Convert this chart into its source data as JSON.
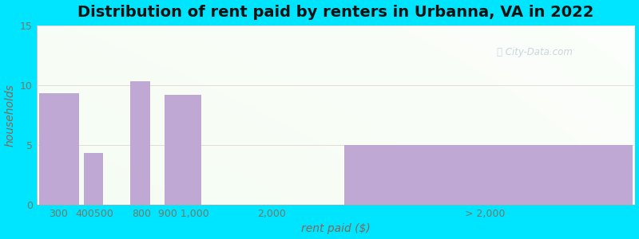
{
  "title": "Distribution of rent paid by renters in Urbanna, VA in 2022",
  "xlabel": "rent paid ($)",
  "ylabel": "households",
  "bar_color": "#c0a8d4",
  "background_outer": "#00e5ff",
  "ylim": [
    0,
    15
  ],
  "yticks": [
    0,
    5,
    10,
    15
  ],
  "categories": [
    "300",
    "400500",
    "800",
    "9001,000",
    "2,000",
    "> 2,000"
  ],
  "bar_lefts": [
    0,
    1,
    2,
    3,
    5,
    7
  ],
  "bar_widths": [
    1,
    0.5,
    0.5,
    1,
    0,
    7
  ],
  "bar_heights": [
    9.3,
    4.3,
    10.3,
    9.2,
    0.0,
    5.0
  ],
  "xtick_positions": [
    0.5,
    1.25,
    2.25,
    3.75,
    5.5,
    10.5
  ],
  "xtick_labels": [
    "300",
    "400500",
    "800",
    "900 1,000",
    "2,000",
    "> 2,000"
  ],
  "xlim": [
    0,
    14
  ],
  "title_fontsize": 14,
  "axis_label_fontsize": 10,
  "tick_fontsize": 9
}
